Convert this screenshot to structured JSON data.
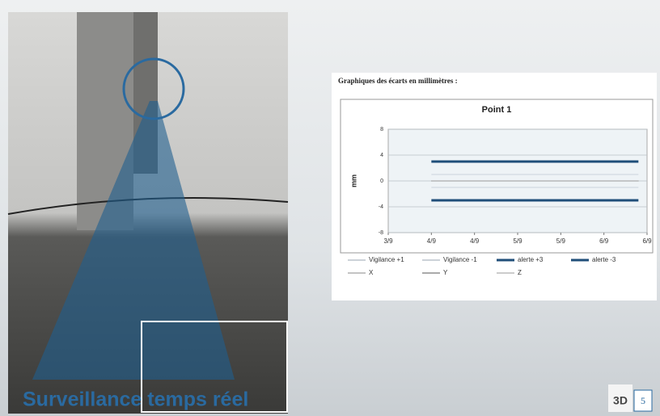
{
  "slide": {
    "caption": "Surveillance temps réel",
    "page_number": "5",
    "logo": "3D"
  },
  "chart_heading": "Graphiques des écarts en millimètres :",
  "chart_data": {
    "type": "line",
    "title": "Point 1",
    "y_label": "mm",
    "x": [
      1,
      5.8
    ],
    "xlim": [
      0,
      6
    ],
    "xticks": [
      {
        "value": 0,
        "label": "3/9"
      },
      {
        "value": 1,
        "label": "4/9"
      },
      {
        "value": 2,
        "label": "4/9"
      },
      {
        "value": 3,
        "label": "5/9"
      },
      {
        "value": 4,
        "label": "5/9"
      },
      {
        "value": 5,
        "label": "6/9"
      },
      {
        "value": 6,
        "label": "6/9"
      }
    ],
    "ylim": [
      -8,
      8
    ],
    "yticks": [
      -8,
      -4,
      0,
      4,
      8
    ],
    "grid": true,
    "series": [
      {
        "name": "Vigilance +1",
        "color": "#c9d3dc",
        "width": 1,
        "values": [
          1,
          1
        ]
      },
      {
        "name": "Vigilance -1",
        "color": "#c9d3dc",
        "width": 1,
        "values": [
          -1,
          -1
        ]
      },
      {
        "name": "alerte +3",
        "color": "#1f4e79",
        "width": 3,
        "values": [
          3,
          3
        ]
      },
      {
        "name": "alerte -3",
        "color": "#1f4e79",
        "width": 3,
        "values": [
          -3,
          -3
        ]
      },
      {
        "name": "X",
        "color": "#8a8a8a",
        "width": 1,
        "values": [
          0,
          0
        ]
      },
      {
        "name": "Y",
        "color": "#555555",
        "width": 1,
        "values": [
          0,
          0
        ]
      },
      {
        "name": "Z",
        "color": "#9a9a9a",
        "width": 1,
        "values": [
          0,
          0
        ]
      }
    ]
  }
}
